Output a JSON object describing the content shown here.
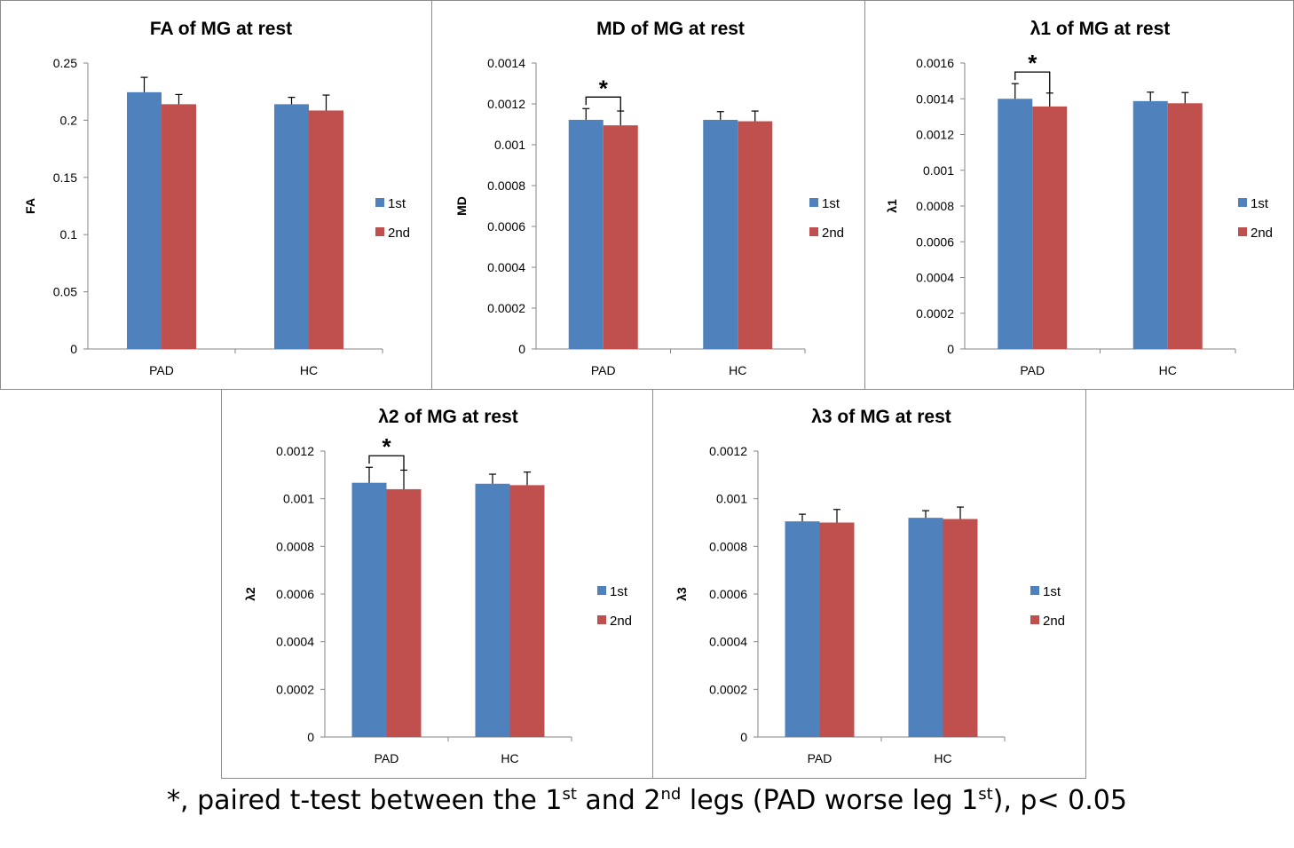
{
  "chart_data": [
    {
      "type": "bar",
      "title": "FA of MG at rest",
      "ylabel": "FA",
      "xlabel": "",
      "ylim": [
        0,
        0.25
      ],
      "yticks": [
        "0",
        "0.05",
        "0.1",
        "0.15",
        "0.2",
        "0.25"
      ],
      "categories": [
        "PAD",
        "HC"
      ],
      "series": [
        {
          "name": "1st",
          "color": "#4f81bd",
          "values": [
            0.2245,
            0.214
          ],
          "errors": [
            0.013,
            0.006
          ]
        },
        {
          "name": "2nd",
          "color": "#c0504d",
          "values": [
            0.214,
            0.2085
          ],
          "errors": [
            0.0085,
            0.0135
          ]
        }
      ],
      "significance": null,
      "legend": "right"
    },
    {
      "type": "bar",
      "title": "MD of MG at rest",
      "ylabel": "MD",
      "xlabel": "",
      "ylim": [
        0,
        0.0014
      ],
      "yticks": [
        "0",
        "0.0002",
        "0.0004",
        "0.0006",
        "0.0008",
        "0.001",
        "0.0012",
        "0.0014"
      ],
      "categories": [
        "PAD",
        "HC"
      ],
      "series": [
        {
          "name": "1st",
          "color": "#4f81bd",
          "values": [
            0.001122,
            0.001122
          ],
          "errors": [
            5.5e-05,
            4e-05
          ]
        },
        {
          "name": "2nd",
          "color": "#c0504d",
          "values": [
            0.001095,
            0.001115
          ],
          "errors": [
            7e-05,
            5e-05
          ]
        }
      ],
      "significance": {
        "category": "PAD",
        "label": "*"
      },
      "legend": "right"
    },
    {
      "type": "bar",
      "title": "λ1 of MG at rest",
      "ylabel": "λ1",
      "xlabel": "",
      "ylim": [
        0,
        0.0016
      ],
      "yticks": [
        "0",
        "0.0002",
        "0.0004",
        "0.0006",
        "0.0008",
        "0.001",
        "0.0012",
        "0.0014",
        "0.0016"
      ],
      "categories": [
        "PAD",
        "HC"
      ],
      "series": [
        {
          "name": "1st",
          "color": "#4f81bd",
          "values": [
            0.0014,
            0.001387
          ],
          "errors": [
            8.5e-05,
            5e-05
          ]
        },
        {
          "name": "2nd",
          "color": "#c0504d",
          "values": [
            0.001357,
            0.001375
          ],
          "errors": [
            7.5e-05,
            6e-05
          ]
        }
      ],
      "significance": {
        "category": "PAD",
        "label": "*"
      },
      "legend": "right"
    },
    {
      "type": "bar",
      "title": "λ2 of MG at rest",
      "ylabel": "λ2",
      "xlabel": "",
      "ylim": [
        0,
        0.0012
      ],
      "yticks": [
        "0",
        "0.0002",
        "0.0004",
        "0.0006",
        "0.0008",
        "0.001",
        "0.0012"
      ],
      "categories": [
        "PAD",
        "HC"
      ],
      "series": [
        {
          "name": "1st",
          "color": "#4f81bd",
          "values": [
            0.001067,
            0.001063
          ],
          "errors": [
            6.5e-05,
            4e-05
          ]
        },
        {
          "name": "2nd",
          "color": "#c0504d",
          "values": [
            0.00104,
            0.001057
          ],
          "errors": [
            8e-05,
            5.5e-05
          ]
        }
      ],
      "significance": {
        "category": "PAD",
        "label": "*"
      },
      "legend": "right"
    },
    {
      "type": "bar",
      "title": "λ3 of MG at rest",
      "ylabel": "λ3",
      "xlabel": "",
      "ylim": [
        0,
        0.0012
      ],
      "yticks": [
        "0",
        "0.0002",
        "0.0004",
        "0.0006",
        "0.0008",
        "0.001",
        "0.0012"
      ],
      "categories": [
        "PAD",
        "HC"
      ],
      "series": [
        {
          "name": "1st",
          "color": "#4f81bd",
          "values": [
            0.000905,
            0.00092
          ],
          "errors": [
            3e-05,
            3e-05
          ]
        },
        {
          "name": "2nd",
          "color": "#c0504d",
          "values": [
            0.0009,
            0.000915
          ],
          "errors": [
            5.5e-05,
            5e-05
          ]
        }
      ],
      "significance": null,
      "legend": "right"
    }
  ],
  "caption": {
    "prefix": "*, paired t-test between the 1",
    "sup1": "st",
    "mid": " and 2",
    "sup2": "nd",
    "mid2": " legs (PAD worse leg 1",
    "sup3": "st",
    "suffix": "), p< 0.05"
  }
}
